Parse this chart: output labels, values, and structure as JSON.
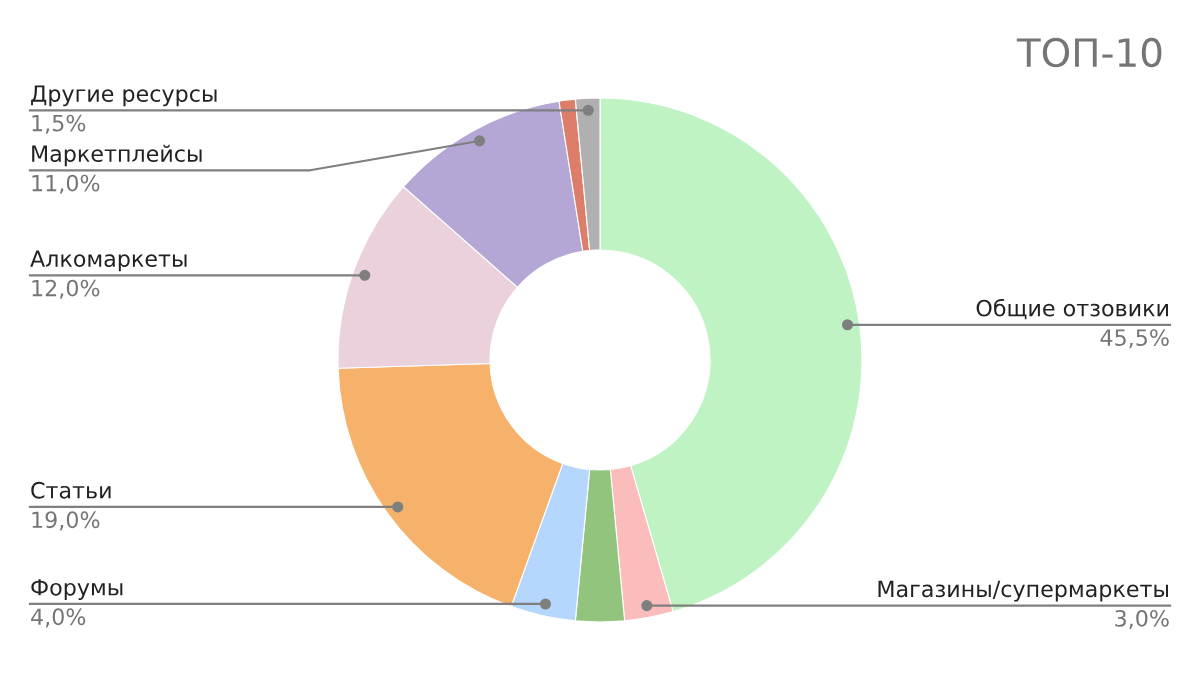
{
  "chart_data": {
    "type": "donut",
    "title": "ТОП-10",
    "categories": [
      "Общие отзовики",
      "Магазины/супермаркеты",
      null,
      "Форумы",
      "Статьи",
      "Алкомаркеты",
      "Маркетплейсы",
      null,
      "Другие ресурсы"
    ],
    "values": [
      45.5,
      3.0,
      3.0,
      4.0,
      19.0,
      12.0,
      11.0,
      1.0,
      1.5
    ],
    "value_labels": [
      "45,5%",
      "3,0%",
      null,
      "4,0%",
      "19,0%",
      "12,0%",
      "11,0%",
      null,
      "1,5%"
    ],
    "colors": [
      "#bff3c3",
      "#fbbcbc",
      "#93c47d",
      "#b6d7fd",
      "#f6b26b",
      "#ead1dc",
      "#b4a7d6",
      "#dd7e6b",
      "#b0b0b0"
    ]
  }
}
